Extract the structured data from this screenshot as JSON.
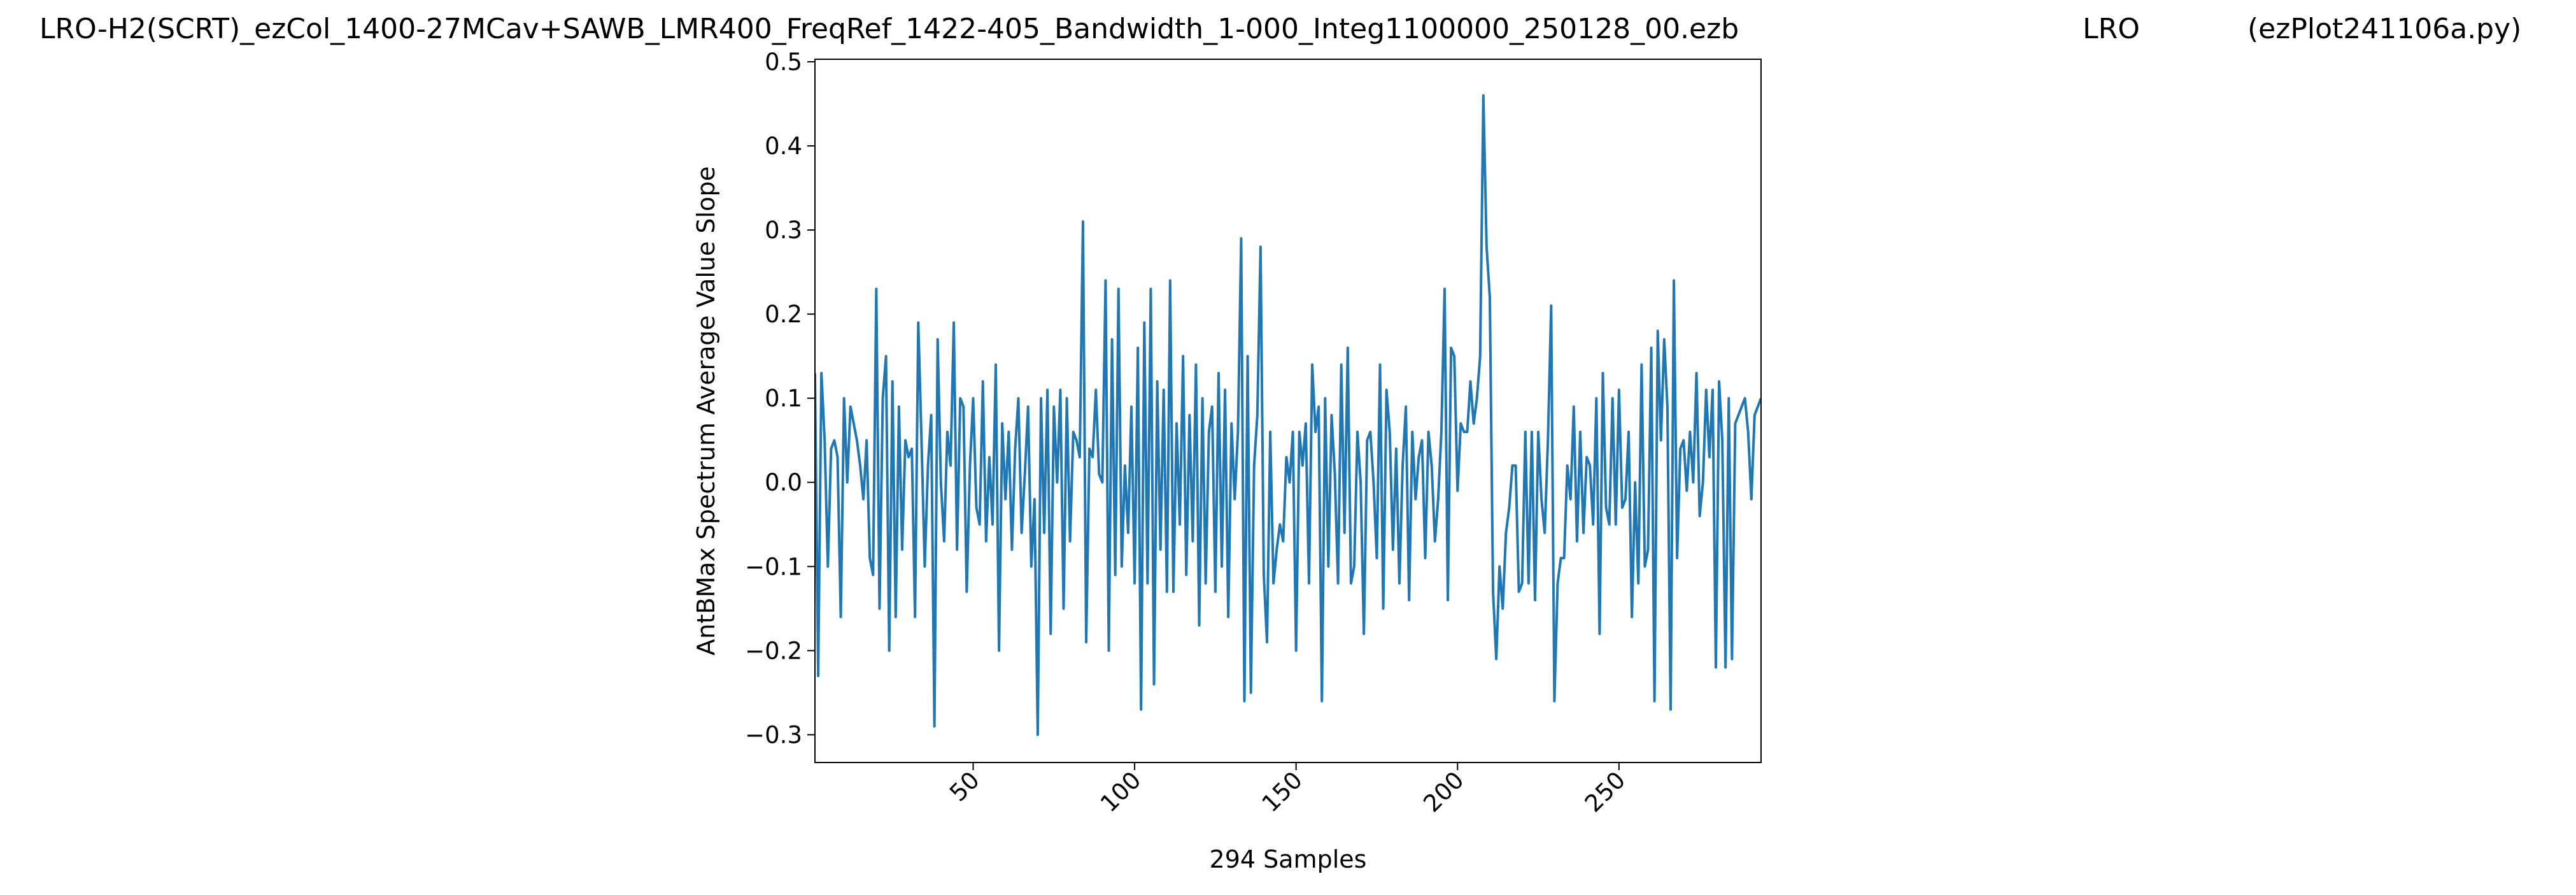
{
  "chart_data": {
    "type": "line",
    "title_parts": [
      "LRO-H2(SCRT)_ezCol_1400-27MCav+SAWB_LMR400_FreqRef_1422-405_Bandwidth_1-000_Integ1100000_250128_00.ezb",
      "LRO",
      "(ezPlot241106a.py)"
    ],
    "xlabel": "294 Samples",
    "ylabel": "AntBMax Spectrum Average Value Slope",
    "x": [
      1,
      2,
      3,
      4,
      5,
      6,
      7,
      8,
      9,
      10,
      11,
      12,
      13,
      14,
      15,
      16,
      17,
      18,
      19,
      20,
      21,
      22,
      23,
      24,
      25,
      26,
      27,
      28,
      29,
      30,
      31,
      32,
      33,
      34,
      35,
      36,
      37,
      38,
      39,
      40,
      41,
      42,
      43,
      44,
      45,
      46,
      47,
      48,
      49,
      50,
      51,
      52,
      53,
      54,
      55,
      56,
      57,
      58,
      59,
      60,
      61,
      62,
      63,
      64,
      65,
      66,
      67,
      68,
      69,
      70,
      71,
      72,
      73,
      74,
      75,
      76,
      77,
      78,
      79,
      80,
      81,
      82,
      83,
      84,
      85,
      86,
      87,
      88,
      89,
      90,
      91,
      92,
      93,
      94,
      95,
      96,
      97,
      98,
      99,
      100,
      101,
      102,
      103,
      104,
      105,
      106,
      107,
      108,
      109,
      110,
      111,
      112,
      113,
      114,
      115,
      116,
      117,
      118,
      119,
      120,
      121,
      122,
      123,
      124,
      125,
      126,
      127,
      128,
      129,
      130,
      131,
      132,
      133,
      134,
      135,
      136,
      137,
      138,
      139,
      140,
      141,
      142,
      143,
      144,
      145,
      146,
      147,
      148,
      149,
      150,
      151,
      152,
      153,
      154,
      155,
      156,
      157,
      158,
      159,
      160,
      161,
      162,
      163,
      164,
      165,
      166,
      167,
      168,
      169,
      170,
      171,
      172,
      173,
      174,
      175,
      176,
      177,
      178,
      179,
      180,
      181,
      182,
      183,
      184,
      185,
      186,
      187,
      188,
      189,
      190,
      191,
      192,
      193,
      194,
      195,
      196,
      197,
      198,
      199,
      200,
      201,
      202,
      203,
      204,
      205,
      206,
      207,
      208,
      209,
      210,
      211,
      212,
      213,
      214,
      215,
      216,
      217,
      218,
      219,
      220,
      221,
      222,
      223,
      224,
      225,
      226,
      227,
      228,
      229,
      230,
      231,
      232,
      233,
      234,
      235,
      236,
      237,
      238,
      239,
      240,
      241,
      242,
      243,
      244,
      245,
      246,
      247,
      248,
      249,
      250,
      251,
      252,
      253,
      254,
      255,
      256,
      257,
      258,
      259,
      260,
      261,
      262,
      263,
      264,
      265,
      266,
      267,
      268,
      269,
      270,
      271,
      272,
      273,
      274,
      275,
      276,
      277,
      278,
      279,
      280,
      281,
      282,
      283,
      284,
      285,
      286,
      287,
      288,
      289,
      290,
      291,
      292,
      293,
      294
    ],
    "series": [
      {
        "color": "#1f77b4",
        "values": [
          0.13,
          -0.23,
          0.13,
          0.05,
          -0.1,
          0.04,
          0.05,
          0.03,
          -0.16,
          0.1,
          0.0,
          0.09,
          0.07,
          0.05,
          0.02,
          -0.02,
          0.05,
          -0.09,
          -0.11,
          0.23,
          -0.15,
          0.1,
          0.15,
          -0.2,
          0.12,
          -0.16,
          0.09,
          -0.08,
          0.05,
          0.03,
          0.04,
          -0.16,
          0.19,
          0.05,
          -0.1,
          0.02,
          0.08,
          -0.29,
          0.17,
          0.0,
          -0.07,
          0.06,
          0.02,
          0.19,
          -0.08,
          0.1,
          0.09,
          -0.13,
          0.02,
          0.1,
          -0.03,
          -0.05,
          0.12,
          -0.07,
          0.03,
          -0.05,
          0.14,
          -0.2,
          0.07,
          -0.02,
          0.06,
          -0.08,
          0.04,
          0.1,
          -0.06,
          0.01,
          0.09,
          -0.1,
          -0.02,
          -0.3,
          0.1,
          -0.06,
          0.11,
          -0.18,
          0.09,
          0.0,
          0.11,
          -0.15,
          0.1,
          -0.07,
          0.06,
          0.05,
          0.03,
          0.31,
          -0.19,
          0.04,
          0.03,
          0.11,
          0.01,
          0.0,
          0.24,
          -0.2,
          0.17,
          -0.11,
          0.23,
          -0.1,
          0.02,
          -0.06,
          0.09,
          -0.12,
          0.16,
          -0.27,
          0.19,
          -0.12,
          0.23,
          -0.24,
          0.12,
          -0.08,
          0.11,
          -0.13,
          0.24,
          -0.13,
          0.07,
          -0.05,
          0.15,
          -0.11,
          0.08,
          -0.07,
          0.14,
          -0.17,
          0.1,
          -0.12,
          0.06,
          0.09,
          -0.13,
          0.13,
          -0.1,
          0.11,
          -0.16,
          0.07,
          -0.02,
          0.06,
          0.29,
          -0.26,
          0.15,
          -0.25,
          0.02,
          0.08,
          0.28,
          -0.11,
          -0.19,
          0.06,
          -0.12,
          -0.08,
          -0.05,
          -0.07,
          0.03,
          0.0,
          0.06,
          -0.2,
          0.06,
          0.02,
          0.07,
          -0.12,
          0.14,
          0.06,
          0.09,
          -0.26,
          0.1,
          -0.1,
          0.08,
          0.01,
          -0.12,
          0.14,
          -0.06,
          0.16,
          -0.12,
          -0.1,
          0.06,
          0.0,
          -0.18,
          0.05,
          0.06,
          0.0,
          -0.09,
          0.14,
          -0.15,
          0.11,
          0.06,
          -0.08,
          0.04,
          -0.12,
          0.02,
          0.09,
          -0.14,
          0.06,
          -0.02,
          0.03,
          0.05,
          -0.09,
          0.06,
          0.02,
          -0.07,
          -0.02,
          0.06,
          0.23,
          -0.14,
          0.16,
          0.15,
          -0.01,
          0.07,
          0.06,
          0.06,
          0.12,
          0.07,
          0.1,
          0.15,
          0.46,
          0.28,
          0.22,
          -0.13,
          -0.21,
          -0.1,
          -0.15,
          -0.06,
          -0.03,
          0.02,
          0.02,
          -0.13,
          -0.12,
          0.06,
          -0.12,
          0.06,
          -0.14,
          0.06,
          -0.02,
          -0.06,
          0.05,
          0.21,
          -0.26,
          -0.12,
          -0.09,
          -0.09,
          0.02,
          -0.02,
          0.09,
          -0.07,
          0.06,
          -0.06,
          0.03,
          0.02,
          -0.05,
          0.1,
          -0.18,
          0.13,
          -0.03,
          -0.05,
          0.1,
          -0.05,
          0.11,
          -0.03,
          -0.02,
          0.06,
          -0.16,
          0.0,
          -0.12,
          0.14,
          -0.1,
          -0.08,
          0.16,
          -0.26,
          0.18,
          0.05,
          0.17,
          0.09,
          -0.27,
          0.24,
          -0.09,
          0.04,
          0.05,
          -0.01,
          0.06,
          0.0,
          0.13,
          -0.04,
          0.0,
          0.11,
          0.03,
          0.11,
          -0.22,
          0.12,
          0.05,
          -0.22,
          0.1,
          -0.21,
          0.07,
          0.08,
          0.09,
          0.1,
          0.06,
          -0.02,
          0.08,
          0.09,
          0.1
        ]
      }
    ],
    "xlim": [
      1,
      294
    ],
    "ylim": [
      -0.333,
      0.503
    ],
    "xticks": [
      50,
      100,
      150,
      200,
      250
    ],
    "yticks": [
      {
        "value": -0.3,
        "label": "−0.3"
      },
      {
        "value": -0.2,
        "label": "−0.2"
      },
      {
        "value": -0.1,
        "label": "−0.1"
      },
      {
        "value": 0,
        "label": "0.0"
      },
      0.1,
      0.2,
      0.3,
      0.4,
      0.5
    ]
  }
}
